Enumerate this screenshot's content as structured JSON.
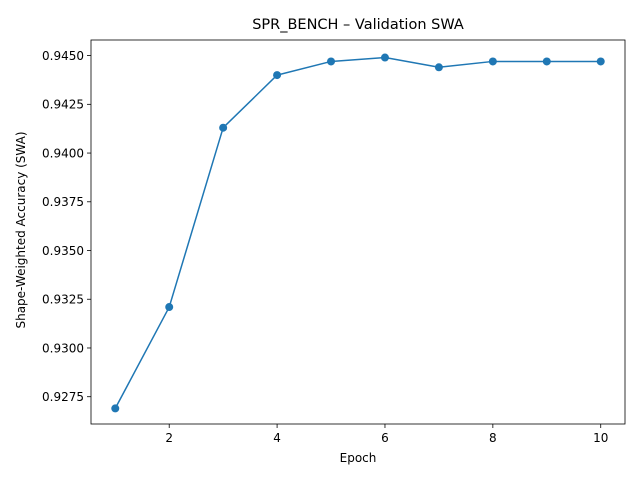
{
  "chart_data": {
    "type": "line",
    "title": "SPR_BENCH – Validation SWA",
    "xlabel": "Epoch",
    "ylabel": "Shape-Weighted Accuracy (SWA)",
    "xlim": [
      0.55,
      10.45
    ],
    "ylim": [
      0.9261,
      0.9458
    ],
    "xticks": [
      2,
      4,
      6,
      8,
      10
    ],
    "xtick_labels": [
      "2",
      "4",
      "6",
      "8",
      "10"
    ],
    "yticks": [
      0.9275,
      0.93,
      0.9325,
      0.935,
      0.9375,
      0.94,
      0.9425,
      0.945
    ],
    "ytick_labels": [
      "0.9275",
      "0.9300",
      "0.9325",
      "0.9350",
      "0.9375",
      "0.9400",
      "0.9425",
      "0.9450"
    ],
    "grid": false,
    "series": [
      {
        "color": "#1f77b4",
        "marker": "circle",
        "x": [
          1,
          2,
          3,
          4,
          5,
          6,
          7,
          8,
          9,
          10
        ],
        "y": [
          0.9269,
          0.9321,
          0.9413,
          0.944,
          0.9447,
          0.9449,
          0.9444,
          0.9447,
          0.9447,
          0.9447
        ]
      }
    ]
  }
}
